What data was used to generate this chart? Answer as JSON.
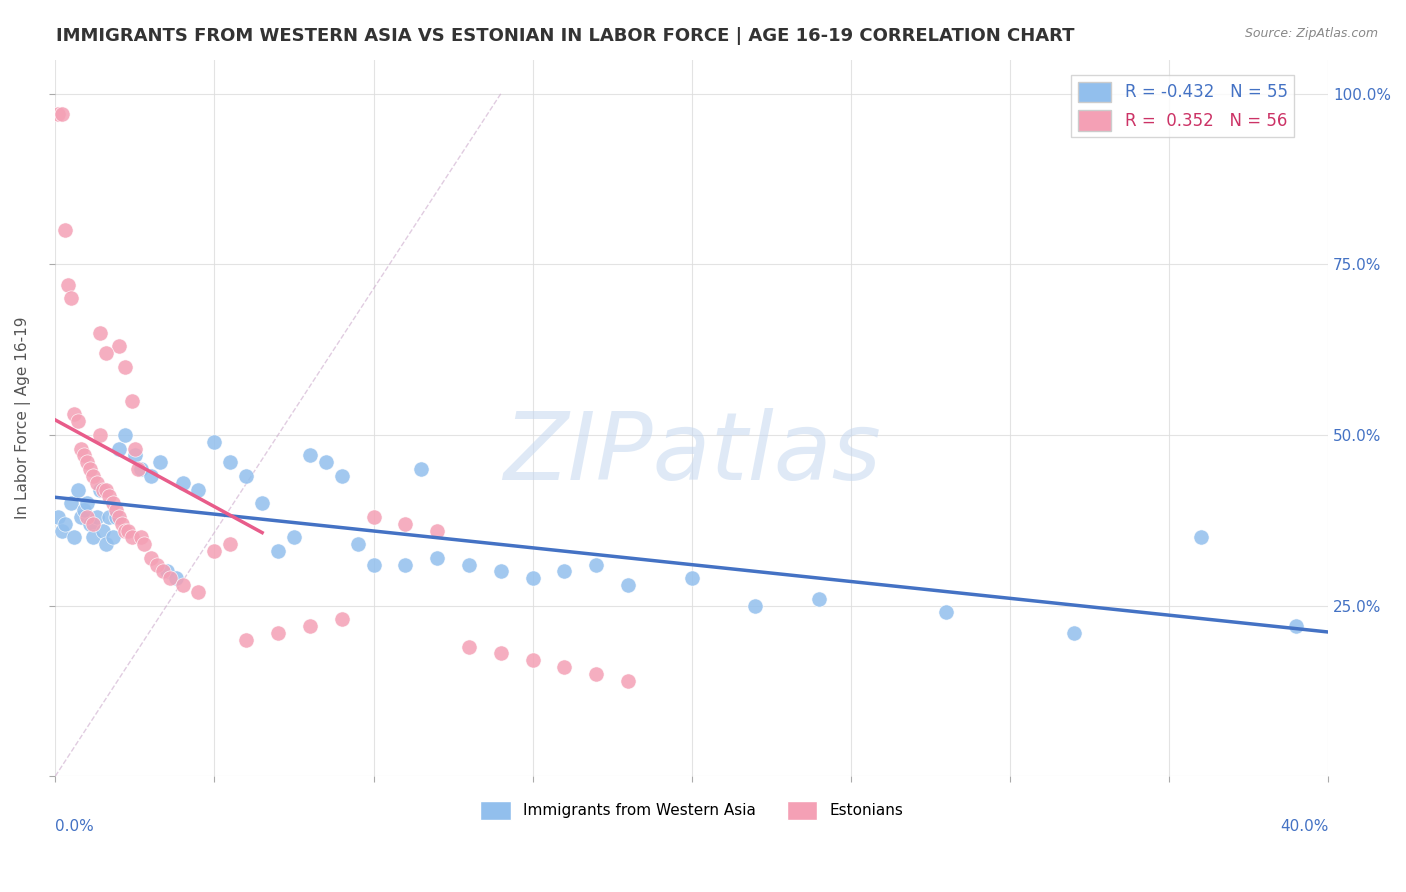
{
  "title": "IMMIGRANTS FROM WESTERN ASIA VS ESTONIAN IN LABOR FORCE | AGE 16-19 CORRELATION CHART",
  "source": "Source: ZipAtlas.com",
  "ylabel_left": "In Labor Force | Age 16-19",
  "legend_bottom": [
    "Immigrants from Western Asia",
    "Estonians"
  ],
  "blue_R": -0.432,
  "blue_N": 55,
  "pink_R": 0.352,
  "pink_N": 56,
  "blue_color": "#92BFED",
  "pink_color": "#F4A0B5",
  "blue_line_color": "#4472C4",
  "pink_line_color": "#E85C8A",
  "diag_line_color": "#CCAACC",
  "background_color": "#FFFFFF",
  "grid_color": "#DDDDDD",
  "x_min": 0.0,
  "x_max": 0.4,
  "y_min": 0.0,
  "y_max": 1.05,
  "blue_dots_x": [
    0.001,
    0.002,
    0.003,
    0.005,
    0.006,
    0.007,
    0.008,
    0.009,
    0.01,
    0.011,
    0.012,
    0.013,
    0.014,
    0.015,
    0.016,
    0.017,
    0.018,
    0.019,
    0.02,
    0.022,
    0.025,
    0.027,
    0.03,
    0.033,
    0.035,
    0.038,
    0.04,
    0.045,
    0.05,
    0.055,
    0.06,
    0.065,
    0.07,
    0.075,
    0.08,
    0.085,
    0.09,
    0.095,
    0.1,
    0.11,
    0.115,
    0.12,
    0.13,
    0.14,
    0.15,
    0.16,
    0.17,
    0.18,
    0.2,
    0.22,
    0.24,
    0.28,
    0.32,
    0.36,
    0.39
  ],
  "blue_dots_y": [
    0.38,
    0.36,
    0.37,
    0.4,
    0.35,
    0.42,
    0.38,
    0.39,
    0.4,
    0.37,
    0.35,
    0.38,
    0.42,
    0.36,
    0.34,
    0.38,
    0.35,
    0.38,
    0.48,
    0.5,
    0.47,
    0.45,
    0.44,
    0.46,
    0.3,
    0.29,
    0.43,
    0.42,
    0.49,
    0.46,
    0.44,
    0.4,
    0.33,
    0.35,
    0.47,
    0.46,
    0.44,
    0.34,
    0.31,
    0.31,
    0.45,
    0.32,
    0.31,
    0.3,
    0.29,
    0.3,
    0.31,
    0.28,
    0.29,
    0.25,
    0.26,
    0.24,
    0.21,
    0.35,
    0.22
  ],
  "pink_dots_x": [
    0.001,
    0.002,
    0.003,
    0.004,
    0.005,
    0.006,
    0.007,
    0.008,
    0.009,
    0.01,
    0.011,
    0.012,
    0.013,
    0.014,
    0.015,
    0.016,
    0.017,
    0.018,
    0.019,
    0.02,
    0.021,
    0.022,
    0.023,
    0.024,
    0.025,
    0.026,
    0.027,
    0.028,
    0.03,
    0.032,
    0.034,
    0.036,
    0.04,
    0.045,
    0.05,
    0.055,
    0.06,
    0.07,
    0.08,
    0.09,
    0.1,
    0.11,
    0.12,
    0.13,
    0.14,
    0.15,
    0.16,
    0.17,
    0.18,
    0.02,
    0.022,
    0.024,
    0.01,
    0.012,
    0.014,
    0.016
  ],
  "pink_dots_y": [
    0.97,
    0.97,
    0.8,
    0.72,
    0.7,
    0.53,
    0.52,
    0.48,
    0.47,
    0.46,
    0.45,
    0.44,
    0.43,
    0.5,
    0.42,
    0.42,
    0.41,
    0.4,
    0.39,
    0.38,
    0.37,
    0.36,
    0.36,
    0.35,
    0.48,
    0.45,
    0.35,
    0.34,
    0.32,
    0.31,
    0.3,
    0.29,
    0.28,
    0.27,
    0.33,
    0.34,
    0.2,
    0.21,
    0.22,
    0.23,
    0.38,
    0.37,
    0.36,
    0.19,
    0.18,
    0.17,
    0.16,
    0.15,
    0.14,
    0.63,
    0.6,
    0.55,
    0.38,
    0.37,
    0.65,
    0.62
  ]
}
